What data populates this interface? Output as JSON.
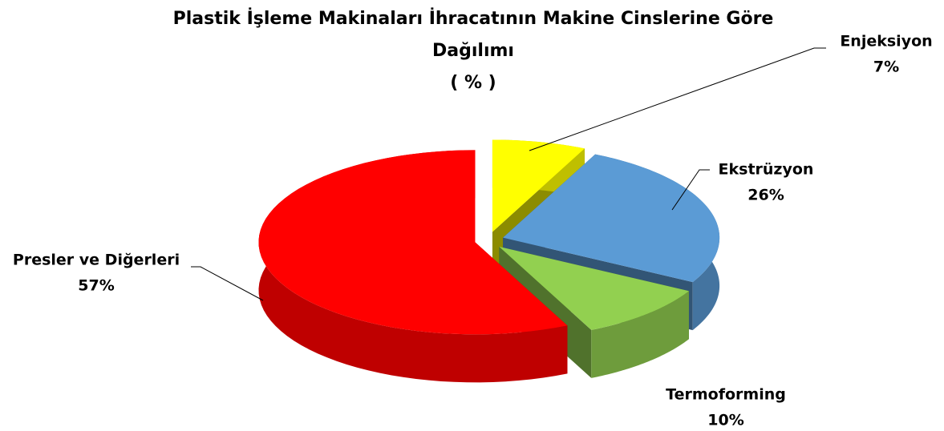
{
  "chart_data": {
    "type": "pie",
    "title": "Plastik İşleme Makinaları İhracatının Makine Cinslerine Göre Dağılımı",
    "subtitle": "( % )",
    "categories": [
      "Enjeksiyon",
      "Ekstrüzyon",
      "Termoforming",
      "Presler ve Diğerleri"
    ],
    "values": [
      7,
      26,
      10,
      57
    ],
    "value_labels": [
      "7%",
      "26%",
      "10%",
      "57%"
    ],
    "colors": [
      "#ffff00",
      "#5b9bd5",
      "#92d050",
      "#ff0000"
    ]
  }
}
